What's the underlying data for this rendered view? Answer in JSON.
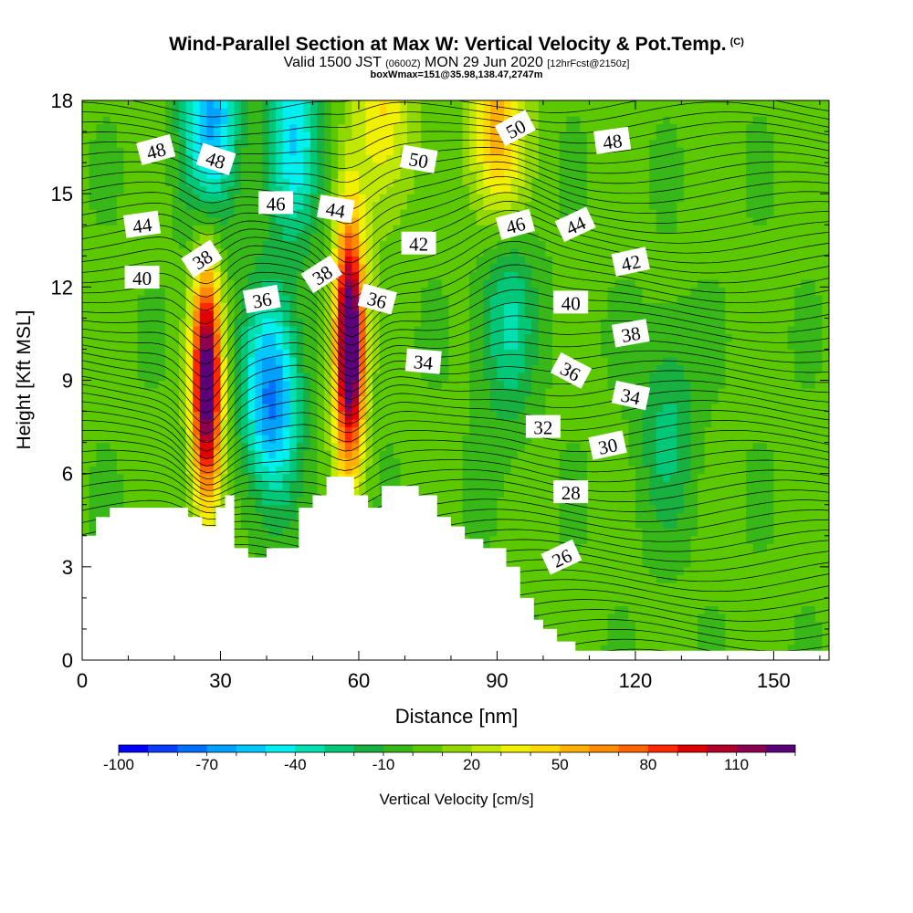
{
  "header": {
    "title": "Wind-Parallel Section at Max W: Vertical Velocity & Pot.Temp.",
    "copyright_mark": "(C)",
    "valid_prefix": "Valid 1500 JST",
    "valid_utc": "(0600Z)",
    "valid_date": "MON 29 Jun 2020",
    "forecast_info": "[12hrFcst@2150z]",
    "box_info": "boxWmax=151@35.98,138.47,2747m"
  },
  "chart_data": {
    "type": "heatmap",
    "title": "Wind-Parallel Section at Max W: Vertical Velocity & Pot.Temp.",
    "xlabel": "Distance [nm]",
    "ylabel": "Height [Kft MSL]",
    "xlim": [
      0,
      162
    ],
    "ylim": [
      0,
      18
    ],
    "x_ticks": [
      0,
      30,
      60,
      90,
      120,
      150
    ],
    "y_ticks": [
      0,
      3,
      6,
      9,
      12,
      15,
      18
    ],
    "colorbar": {
      "label": "Vertical Velocity [cm/s]",
      "tick_values": [
        -100,
        -70,
        -40,
        -10,
        20,
        50,
        80,
        110
      ],
      "min": -100,
      "max": 120,
      "step": 10,
      "colors": [
        "#0000ff",
        "#0a3cff",
        "#0070ff",
        "#00a0ff",
        "#00c8ff",
        "#00f0f0",
        "#00e0b0",
        "#00c878",
        "#18b040",
        "#38b818",
        "#5cc800",
        "#90d800",
        "#c0e800",
        "#f0f000",
        "#ffd800",
        "#ffb000",
        "#ff8c00",
        "#ff6400",
        "#ff2800",
        "#e00000",
        "#b40028",
        "#8c0050",
        "#5a0078"
      ]
    },
    "vertical_velocity_cores": [
      {
        "x": 27,
        "y": 8.8,
        "w": 135
      },
      {
        "x": 58,
        "y": 10.2,
        "w": 151
      },
      {
        "x": 41,
        "y": 8.5,
        "w": -75
      },
      {
        "x": 46,
        "y": 16.8,
        "w": -50
      },
      {
        "x": 28,
        "y": 17.5,
        "w": -65
      },
      {
        "x": 92,
        "y": 11.0,
        "w": -35
      },
      {
        "x": 127,
        "y": 7.5,
        "w": -25
      },
      {
        "x": 90,
        "y": 17.0,
        "w": 55
      },
      {
        "x": 65,
        "y": 17.5,
        "w": 40
      }
    ],
    "terrain_nm_kft": [
      [
        0,
        4.0
      ],
      [
        3,
        4.0
      ],
      [
        3,
        4.6
      ],
      [
        6,
        4.6
      ],
      [
        6,
        4.9
      ],
      [
        23,
        4.9
      ],
      [
        23,
        4.6
      ],
      [
        26,
        4.6
      ],
      [
        26,
        4.3
      ],
      [
        29,
        4.3
      ],
      [
        29,
        4.9
      ],
      [
        31,
        4.9
      ],
      [
        31,
        5.3
      ],
      [
        33,
        5.3
      ],
      [
        33,
        3.6
      ],
      [
        36,
        3.6
      ],
      [
        36,
        3.3
      ],
      [
        40,
        3.3
      ],
      [
        40,
        3.6
      ],
      [
        47,
        3.6
      ],
      [
        47,
        4.9
      ],
      [
        50,
        4.9
      ],
      [
        50,
        5.3
      ],
      [
        53,
        5.3
      ],
      [
        53,
        5.9
      ],
      [
        59,
        5.9
      ],
      [
        59,
        5.3
      ],
      [
        62,
        5.3
      ],
      [
        62,
        4.9
      ],
      [
        65,
        4.9
      ],
      [
        65,
        5.6
      ],
      [
        73,
        5.6
      ],
      [
        73,
        5.3
      ],
      [
        77,
        5.3
      ],
      [
        77,
        4.6
      ],
      [
        80,
        4.6
      ],
      [
        80,
        4.3
      ],
      [
        83,
        4.3
      ],
      [
        83,
        3.9
      ],
      [
        87,
        3.9
      ],
      [
        87,
        3.6
      ],
      [
        92,
        3.6
      ],
      [
        92,
        3.0
      ],
      [
        95,
        3.0
      ],
      [
        95,
        2.0
      ],
      [
        98,
        2.0
      ],
      [
        98,
        1.3
      ],
      [
        100,
        1.3
      ],
      [
        100,
        1.0
      ],
      [
        103,
        1.0
      ],
      [
        103,
        0.6
      ],
      [
        107,
        0.6
      ],
      [
        107,
        0.3
      ],
      [
        162,
        0.3
      ]
    ],
    "potential_temperature_labels": [
      {
        "label": "48",
        "x": 16,
        "y": 16.4,
        "rot": -15
      },
      {
        "label": "48",
        "x": 29,
        "y": 16.1,
        "rot": 18
      },
      {
        "label": "50",
        "x": 73,
        "y": 16.1,
        "rot": 10
      },
      {
        "label": "50",
        "x": 94,
        "y": 17.1,
        "rot": -28
      },
      {
        "label": "48",
        "x": 115,
        "y": 16.7,
        "rot": -8
      },
      {
        "label": "44",
        "x": 13,
        "y": 14.0,
        "rot": -8
      },
      {
        "label": "46",
        "x": 42,
        "y": 14.7,
        "rot": 0
      },
      {
        "label": "44",
        "x": 55,
        "y": 14.5,
        "rot": 10
      },
      {
        "label": "42",
        "x": 73,
        "y": 13.4,
        "rot": 0
      },
      {
        "label": "46",
        "x": 94,
        "y": 14.0,
        "rot": -15
      },
      {
        "label": "44",
        "x": 107,
        "y": 14.0,
        "rot": -25
      },
      {
        "label": "42",
        "x": 119,
        "y": 12.8,
        "rot": -12
      },
      {
        "label": "40",
        "x": 13,
        "y": 12.3,
        "rot": 0
      },
      {
        "label": "38",
        "x": 26,
        "y": 12.9,
        "rot": -33
      },
      {
        "label": "36",
        "x": 39,
        "y": 11.6,
        "rot": -10
      },
      {
        "label": "38",
        "x": 52,
        "y": 12.4,
        "rot": -33
      },
      {
        "label": "36",
        "x": 64,
        "y": 11.6,
        "rot": 15
      },
      {
        "label": "40",
        "x": 106,
        "y": 11.5,
        "rot": 0
      },
      {
        "label": "38",
        "x": 119,
        "y": 10.5,
        "rot": -10
      },
      {
        "label": "34",
        "x": 74,
        "y": 9.6,
        "rot": 5
      },
      {
        "label": "36",
        "x": 106,
        "y": 9.3,
        "rot": 28
      },
      {
        "label": "34",
        "x": 119,
        "y": 8.5,
        "rot": 12
      },
      {
        "label": "32",
        "x": 100,
        "y": 7.5,
        "rot": 0
      },
      {
        "label": "30",
        "x": 114,
        "y": 6.9,
        "rot": -12
      },
      {
        "label": "28",
        "x": 106,
        "y": 5.4,
        "rot": 0
      },
      {
        "label": "26",
        "x": 104,
        "y": 3.3,
        "rot": -25
      }
    ]
  }
}
